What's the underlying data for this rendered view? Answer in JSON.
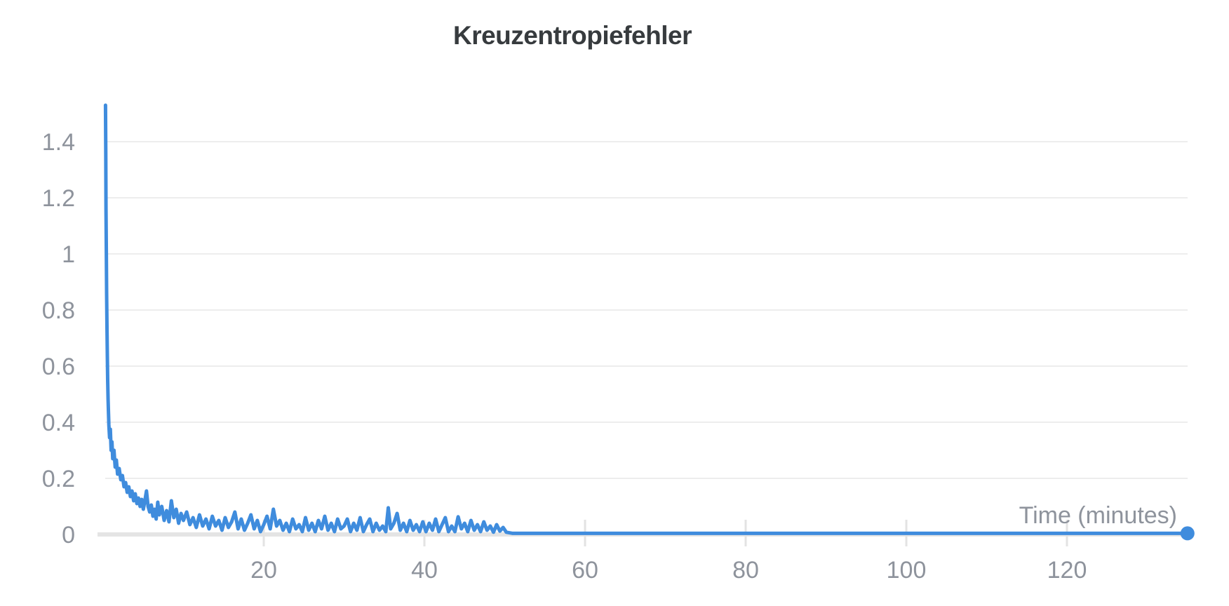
{
  "page": {
    "background": "#ffffff"
  },
  "chart_data": {
    "type": "line",
    "title": "Kreuzentropiefehler",
    "xlabel": "Time (minutes)",
    "ylabel": "",
    "x_ticks": [
      20,
      40,
      60,
      80,
      100,
      120
    ],
    "y_ticks": [
      0,
      0.2,
      0.4,
      0.6,
      0.8,
      1,
      1.2,
      1.4
    ],
    "y_tick_labels": [
      "0",
      "0.2",
      "0.4",
      "0.6",
      "0.8",
      "1",
      "1.2",
      "1.4"
    ],
    "xlim": [
      0,
      140
    ],
    "ylim": [
      0,
      1.575
    ],
    "grid": "horizontal-only",
    "legend": "none",
    "endpoint_marker": true,
    "colors": {
      "line": "#3f8cdd",
      "grid": "#ededed",
      "axis_line": "#e4e4e4",
      "tick": "#e3e3e3",
      "labels": "#8e939c",
      "title": "#373b3e"
    },
    "series": [
      {
        "name": "Kreuzentropiefehler",
        "points": [
          [
            0.3,
            1.53
          ],
          [
            0.33,
            1.36
          ],
          [
            0.36,
            1.16
          ],
          [
            0.4,
            1.0
          ],
          [
            0.44,
            0.86
          ],
          [
            0.48,
            0.74
          ],
          [
            0.52,
            0.64
          ],
          [
            0.57,
            0.55
          ],
          [
            0.62,
            0.48
          ],
          [
            0.67,
            0.43
          ],
          [
            0.72,
            0.39
          ],
          [
            0.8,
            0.345
          ],
          [
            0.9,
            0.375
          ],
          [
            1.0,
            0.3
          ],
          [
            1.1,
            0.33
          ],
          [
            1.2,
            0.27
          ],
          [
            1.35,
            0.3
          ],
          [
            1.5,
            0.24
          ],
          [
            1.65,
            0.265
          ],
          [
            1.8,
            0.215
          ],
          [
            2.0,
            0.235
          ],
          [
            2.2,
            0.195
          ],
          [
            2.4,
            0.21
          ],
          [
            2.6,
            0.17
          ],
          [
            2.8,
            0.185
          ],
          [
            3.0,
            0.15
          ],
          [
            3.2,
            0.17
          ],
          [
            3.4,
            0.135
          ],
          [
            3.6,
            0.155
          ],
          [
            3.8,
            0.12
          ],
          [
            4.0,
            0.145
          ],
          [
            4.2,
            0.11
          ],
          [
            4.4,
            0.13
          ],
          [
            4.6,
            0.1
          ],
          [
            4.8,
            0.125
          ],
          [
            5.0,
            0.09
          ],
          [
            5.2,
            0.12
          ],
          [
            5.4,
            0.155
          ],
          [
            5.6,
            0.1
          ],
          [
            5.8,
            0.08
          ],
          [
            6.0,
            0.105
          ],
          [
            6.2,
            0.065
          ],
          [
            6.4,
            0.09
          ],
          [
            6.6,
            0.055
          ],
          [
            6.8,
            0.115
          ],
          [
            7.0,
            0.07
          ],
          [
            7.3,
            0.1
          ],
          [
            7.6,
            0.05
          ],
          [
            7.9,
            0.085
          ],
          [
            8.2,
            0.045
          ],
          [
            8.5,
            0.12
          ],
          [
            8.8,
            0.06
          ],
          [
            9.1,
            0.09
          ],
          [
            9.4,
            0.04
          ],
          [
            9.7,
            0.075
          ],
          [
            10.0,
            0.05
          ],
          [
            10.4,
            0.08
          ],
          [
            10.8,
            0.035
          ],
          [
            11.2,
            0.06
          ],
          [
            11.6,
            0.025
          ],
          [
            12.0,
            0.07
          ],
          [
            12.4,
            0.03
          ],
          [
            12.8,
            0.055
          ],
          [
            13.2,
            0.02
          ],
          [
            13.6,
            0.065
          ],
          [
            14.0,
            0.03
          ],
          [
            14.4,
            0.05
          ],
          [
            14.8,
            0.015
          ],
          [
            15.2,
            0.06
          ],
          [
            15.6,
            0.025
          ],
          [
            16.0,
            0.045
          ],
          [
            16.4,
            0.08
          ],
          [
            16.8,
            0.02
          ],
          [
            17.2,
            0.055
          ],
          [
            17.6,
            0.015
          ],
          [
            18.0,
            0.04
          ],
          [
            18.4,
            0.07
          ],
          [
            18.8,
            0.02
          ],
          [
            19.2,
            0.05
          ],
          [
            19.6,
            0.01
          ],
          [
            20.0,
            0.035
          ],
          [
            20.4,
            0.065
          ],
          [
            20.8,
            0.02
          ],
          [
            21.2,
            0.09
          ],
          [
            21.6,
            0.03
          ],
          [
            22.0,
            0.05
          ],
          [
            22.4,
            0.015
          ],
          [
            22.8,
            0.04
          ],
          [
            23.2,
            0.01
          ],
          [
            23.6,
            0.055
          ],
          [
            24.0,
            0.02
          ],
          [
            24.4,
            0.035
          ],
          [
            24.8,
            0.01
          ],
          [
            25.2,
            0.06
          ],
          [
            25.6,
            0.015
          ],
          [
            26.0,
            0.04
          ],
          [
            26.4,
            0.01
          ],
          [
            26.8,
            0.05
          ],
          [
            27.2,
            0.02
          ],
          [
            27.6,
            0.065
          ],
          [
            28.0,
            0.015
          ],
          [
            28.4,
            0.04
          ],
          [
            28.8,
            0.01
          ],
          [
            29.2,
            0.055
          ],
          [
            29.6,
            0.02
          ],
          [
            30.0,
            0.03
          ],
          [
            30.4,
            0.055
          ],
          [
            30.8,
            0.01
          ],
          [
            31.2,
            0.04
          ],
          [
            31.6,
            0.015
          ],
          [
            32.0,
            0.06
          ],
          [
            32.4,
            0.01
          ],
          [
            32.8,
            0.035
          ],
          [
            33.2,
            0.055
          ],
          [
            33.6,
            0.01
          ],
          [
            34.0,
            0.04
          ],
          [
            34.4,
            0.015
          ],
          [
            34.8,
            0.03
          ],
          [
            35.2,
            0.01
          ],
          [
            35.5,
            0.095
          ],
          [
            35.8,
            0.02
          ],
          [
            36.2,
            0.04
          ],
          [
            36.6,
            0.075
          ],
          [
            37.0,
            0.015
          ],
          [
            37.4,
            0.04
          ],
          [
            37.8,
            0.01
          ],
          [
            38.2,
            0.05
          ],
          [
            38.6,
            0.015
          ],
          [
            39.0,
            0.035
          ],
          [
            39.4,
            0.01
          ],
          [
            39.8,
            0.045
          ],
          [
            40.2,
            0.01
          ],
          [
            40.6,
            0.04
          ],
          [
            41.0,
            0.015
          ],
          [
            41.4,
            0.055
          ],
          [
            41.8,
            0.01
          ],
          [
            42.2,
            0.035
          ],
          [
            42.6,
            0.06
          ],
          [
            43.0,
            0.01
          ],
          [
            43.4,
            0.03
          ],
          [
            43.8,
            0.01
          ],
          [
            44.2,
            0.063
          ],
          [
            44.6,
            0.02
          ],
          [
            45.0,
            0.04
          ],
          [
            45.4,
            0.01
          ],
          [
            45.8,
            0.05
          ],
          [
            46.2,
            0.015
          ],
          [
            46.6,
            0.035
          ],
          [
            47.0,
            0.01
          ],
          [
            47.4,
            0.045
          ],
          [
            47.8,
            0.015
          ],
          [
            48.2,
            0.03
          ],
          [
            48.6,
            0.008
          ],
          [
            49.0,
            0.035
          ],
          [
            49.4,
            0.012
          ],
          [
            49.8,
            0.025
          ],
          [
            50.2,
            0.008
          ],
          [
            51,
            0.004
          ],
          [
            55,
            0.004
          ],
          [
            60,
            0.004
          ],
          [
            65,
            0.004
          ],
          [
            70,
            0.004
          ],
          [
            75,
            0.004
          ],
          [
            80,
            0.004
          ],
          [
            85,
            0.004
          ],
          [
            90,
            0.004
          ],
          [
            95,
            0.004
          ],
          [
            100,
            0.004
          ],
          [
            105,
            0.004
          ],
          [
            110,
            0.004
          ],
          [
            115,
            0.004
          ],
          [
            120,
            0.004
          ],
          [
            125,
            0.004
          ],
          [
            130,
            0.004
          ],
          [
            135,
            0.004
          ]
        ]
      }
    ]
  }
}
